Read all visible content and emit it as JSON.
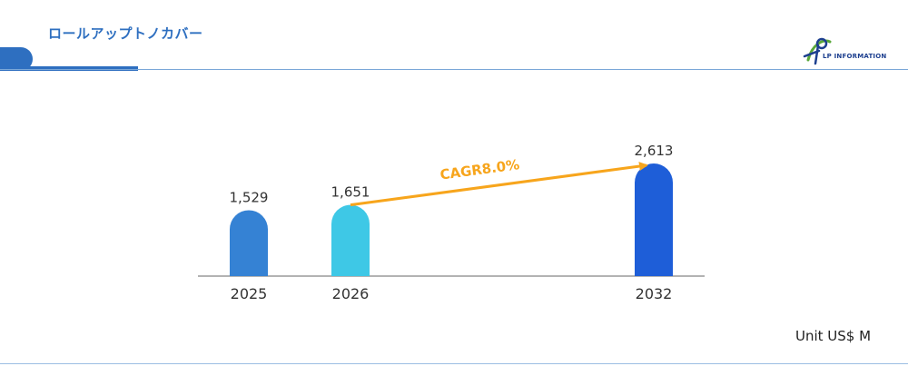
{
  "header": {
    "title": "ロールアップトノカバー"
  },
  "logo": {
    "text": "LP INFORMATION",
    "colors": {
      "primary": "#1d3f8f",
      "accent": "#5aa83a"
    }
  },
  "chart_data": {
    "type": "bar",
    "categories": [
      "2025",
      "2026",
      "2032"
    ],
    "values": [
      1529,
      1651,
      2613
    ],
    "value_labels": [
      "1,529",
      "1,651",
      "2,613"
    ],
    "colors": [
      "#3582d4",
      "#3ec8e6",
      "#1e5ed8"
    ],
    "unit_label": "Unit US$ M",
    "annotation": {
      "text": "CAGR8.0%",
      "from": "2026",
      "to": "2032",
      "color": "#f7a51c"
    },
    "ylim": [
      0,
      2613
    ],
    "grid": false,
    "legend": "none"
  }
}
